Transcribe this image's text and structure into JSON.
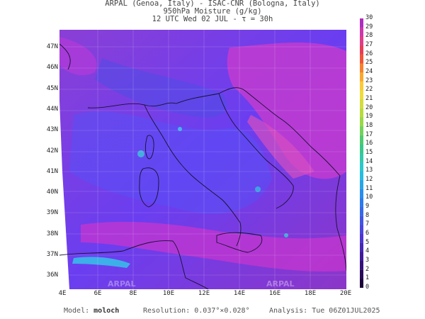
{
  "header": {
    "line1": "ARPAL (Genoa, Italy)  -  ISAC-CNR (Bologna, Italy)",
    "line2": "950hPa Moisture (g/kg)",
    "line3": "12 UTC Wed 02 JUL  -  τ = 30h"
  },
  "axes": {
    "lat_labels": [
      "47N",
      "46N",
      "45N",
      "44N",
      "43N",
      "42N",
      "41N",
      "40N",
      "39N",
      "38N",
      "37N",
      "36N"
    ],
    "lon_labels": [
      "4E",
      "6E",
      "8E",
      "10E",
      "12E",
      "14E",
      "16E",
      "18E",
      "20E"
    ]
  },
  "colorbar": {
    "min": 0,
    "max": 30,
    "labels": [
      "0",
      "1",
      "2",
      "3",
      "4",
      "5",
      "6",
      "7",
      "8",
      "9",
      "10",
      "11",
      "12",
      "13",
      "14",
      "15",
      "16",
      "17",
      "18",
      "19",
      "20",
      "21",
      "22",
      "23",
      "24",
      "25",
      "26",
      "27",
      "28",
      "29",
      "30"
    ]
  },
  "watermark": "ARPAL",
  "footer": {
    "model_label": "Model:",
    "model_value": "moloch",
    "resolution_label": "Resolution:",
    "resolution_value": "0.037°×0.028°",
    "analysis_label": "Analysis:",
    "analysis_value": "Tue 06Z01JUL2025"
  }
}
